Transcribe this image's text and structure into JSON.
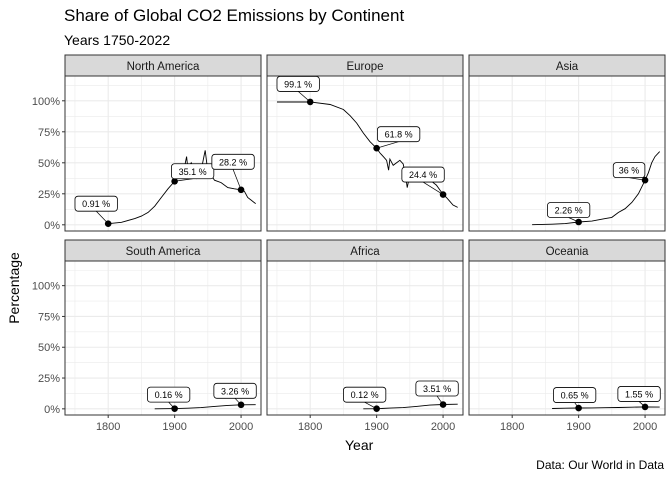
{
  "header": {
    "title": "Share of Global CO2 Emissions by Continent",
    "subtitle": "Years 1750-2022",
    "caption": "Data: Our World in Data",
    "xlabel": "Year",
    "ylabel": "Percentage"
  },
  "chart_data": {
    "type": "line",
    "facets_layout": "2 rows x 3 columns",
    "xlim": [
      1735,
      2030
    ],
    "ylim": [
      -0.05,
      1.2
    ],
    "x_ticks": [
      1800,
      1900,
      2000
    ],
    "y_ticks": [
      0,
      0.25,
      0.5,
      0.75,
      1.0
    ],
    "y_tick_labels": [
      "0%",
      "25%",
      "50%",
      "75%",
      "100%"
    ],
    "grid": true,
    "facets": [
      {
        "name": "North America",
        "line": [
          [
            1800,
            0.009
          ],
          [
            1820,
            0.02
          ],
          [
            1840,
            0.05
          ],
          [
            1850,
            0.07
          ],
          [
            1860,
            0.1
          ],
          [
            1870,
            0.15
          ],
          [
            1880,
            0.22
          ],
          [
            1890,
            0.29
          ],
          [
            1900,
            0.351
          ],
          [
            1905,
            0.4
          ],
          [
            1910,
            0.44
          ],
          [
            1915,
            0.47
          ],
          [
            1918,
            0.55
          ],
          [
            1920,
            0.45
          ],
          [
            1925,
            0.5
          ],
          [
            1930,
            0.44
          ],
          [
            1933,
            0.38
          ],
          [
            1937,
            0.46
          ],
          [
            1940,
            0.44
          ],
          [
            1944,
            0.55
          ],
          [
            1946,
            0.6
          ],
          [
            1950,
            0.43
          ],
          [
            1955,
            0.4
          ],
          [
            1960,
            0.36
          ],
          [
            1970,
            0.34
          ],
          [
            1980,
            0.3
          ],
          [
            1990,
            0.29
          ],
          [
            2000,
            0.282
          ],
          [
            2005,
            0.27
          ],
          [
            2010,
            0.22
          ],
          [
            2015,
            0.2
          ],
          [
            2022,
            0.17
          ]
        ],
        "points": [
          {
            "x": 1800,
            "y": 0.0091,
            "label": "0.91 %"
          },
          {
            "x": 1900,
            "y": 0.351,
            "label": "35.1 %"
          },
          {
            "x": 2000,
            "y": 0.282,
            "label": "28.2 %"
          }
        ]
      },
      {
        "name": "Europe",
        "line": [
          [
            1750,
            0.99
          ],
          [
            1780,
            0.99
          ],
          [
            1800,
            0.991
          ],
          [
            1830,
            0.97
          ],
          [
            1850,
            0.93
          ],
          [
            1860,
            0.88
          ],
          [
            1870,
            0.82
          ],
          [
            1880,
            0.74
          ],
          [
            1890,
            0.67
          ],
          [
            1900,
            0.618
          ],
          [
            1905,
            0.58
          ],
          [
            1910,
            0.55
          ],
          [
            1915,
            0.52
          ],
          [
            1918,
            0.44
          ],
          [
            1920,
            0.53
          ],
          [
            1925,
            0.48
          ],
          [
            1930,
            0.5
          ],
          [
            1935,
            0.52
          ],
          [
            1940,
            0.49
          ],
          [
            1944,
            0.38
          ],
          [
            1946,
            0.3
          ],
          [
            1950,
            0.4
          ],
          [
            1955,
            0.42
          ],
          [
            1960,
            0.43
          ],
          [
            1965,
            0.41
          ],
          [
            1970,
            0.4
          ],
          [
            1975,
            0.37
          ],
          [
            1980,
            0.37
          ],
          [
            1985,
            0.34
          ],
          [
            1990,
            0.32
          ],
          [
            2000,
            0.244
          ],
          [
            2005,
            0.22
          ],
          [
            2010,
            0.19
          ],
          [
            2015,
            0.16
          ],
          [
            2022,
            0.14
          ]
        ],
        "points": [
          {
            "x": 1800,
            "y": 0.991,
            "label": "99.1 %"
          },
          {
            "x": 1900,
            "y": 0.618,
            "label": "61.8 %"
          },
          {
            "x": 2000,
            "y": 0.244,
            "label": "24.4 %"
          }
        ]
      },
      {
        "name": "Asia",
        "line": [
          [
            1830,
            0.001
          ],
          [
            1860,
            0.005
          ],
          [
            1880,
            0.01
          ],
          [
            1900,
            0.0226
          ],
          [
            1920,
            0.03
          ],
          [
            1940,
            0.05
          ],
          [
            1950,
            0.06
          ],
          [
            1960,
            0.1
          ],
          [
            1970,
            0.13
          ],
          [
            1980,
            0.18
          ],
          [
            1990,
            0.25
          ],
          [
            2000,
            0.36
          ],
          [
            2005,
            0.42
          ],
          [
            2010,
            0.5
          ],
          [
            2015,
            0.55
          ],
          [
            2022,
            0.59
          ]
        ],
        "points": [
          {
            "x": 1900,
            "y": 0.0226,
            "label": "2.26 %"
          },
          {
            "x": 2000,
            "y": 0.36,
            "label": "36 %"
          }
        ]
      },
      {
        "name": "South America",
        "line": [
          [
            1870,
            0.0005
          ],
          [
            1900,
            0.0016
          ],
          [
            1920,
            0.005
          ],
          [
            1940,
            0.01
          ],
          [
            1960,
            0.02
          ],
          [
            1980,
            0.028
          ],
          [
            2000,
            0.0326
          ],
          [
            2022,
            0.034
          ]
        ],
        "points": [
          {
            "x": 1900,
            "y": 0.0016,
            "label": "0.16 %"
          },
          {
            "x": 2000,
            "y": 0.0326,
            "label": "3.26 %"
          }
        ]
      },
      {
        "name": "Africa",
        "line": [
          [
            1880,
            0.0005
          ],
          [
            1900,
            0.0012
          ],
          [
            1920,
            0.006
          ],
          [
            1940,
            0.01
          ],
          [
            1960,
            0.02
          ],
          [
            1980,
            0.03
          ],
          [
            2000,
            0.0351
          ],
          [
            2022,
            0.038
          ]
        ],
        "points": [
          {
            "x": 1900,
            "y": 0.0012,
            "label": "0.12 %"
          },
          {
            "x": 2000,
            "y": 0.0351,
            "label": "3.51 %"
          }
        ]
      },
      {
        "name": "Oceania",
        "line": [
          [
            1860,
            0.003
          ],
          [
            1880,
            0.005
          ],
          [
            1900,
            0.0065
          ],
          [
            1920,
            0.008
          ],
          [
            1940,
            0.009
          ],
          [
            1960,
            0.011
          ],
          [
            1980,
            0.013
          ],
          [
            2000,
            0.0155
          ],
          [
            2022,
            0.014
          ]
        ],
        "points": [
          {
            "x": 1900,
            "y": 0.0065,
            "label": "0.65 %"
          },
          {
            "x": 2000,
            "y": 0.0155,
            "label": "1.55 %"
          }
        ]
      }
    ]
  }
}
